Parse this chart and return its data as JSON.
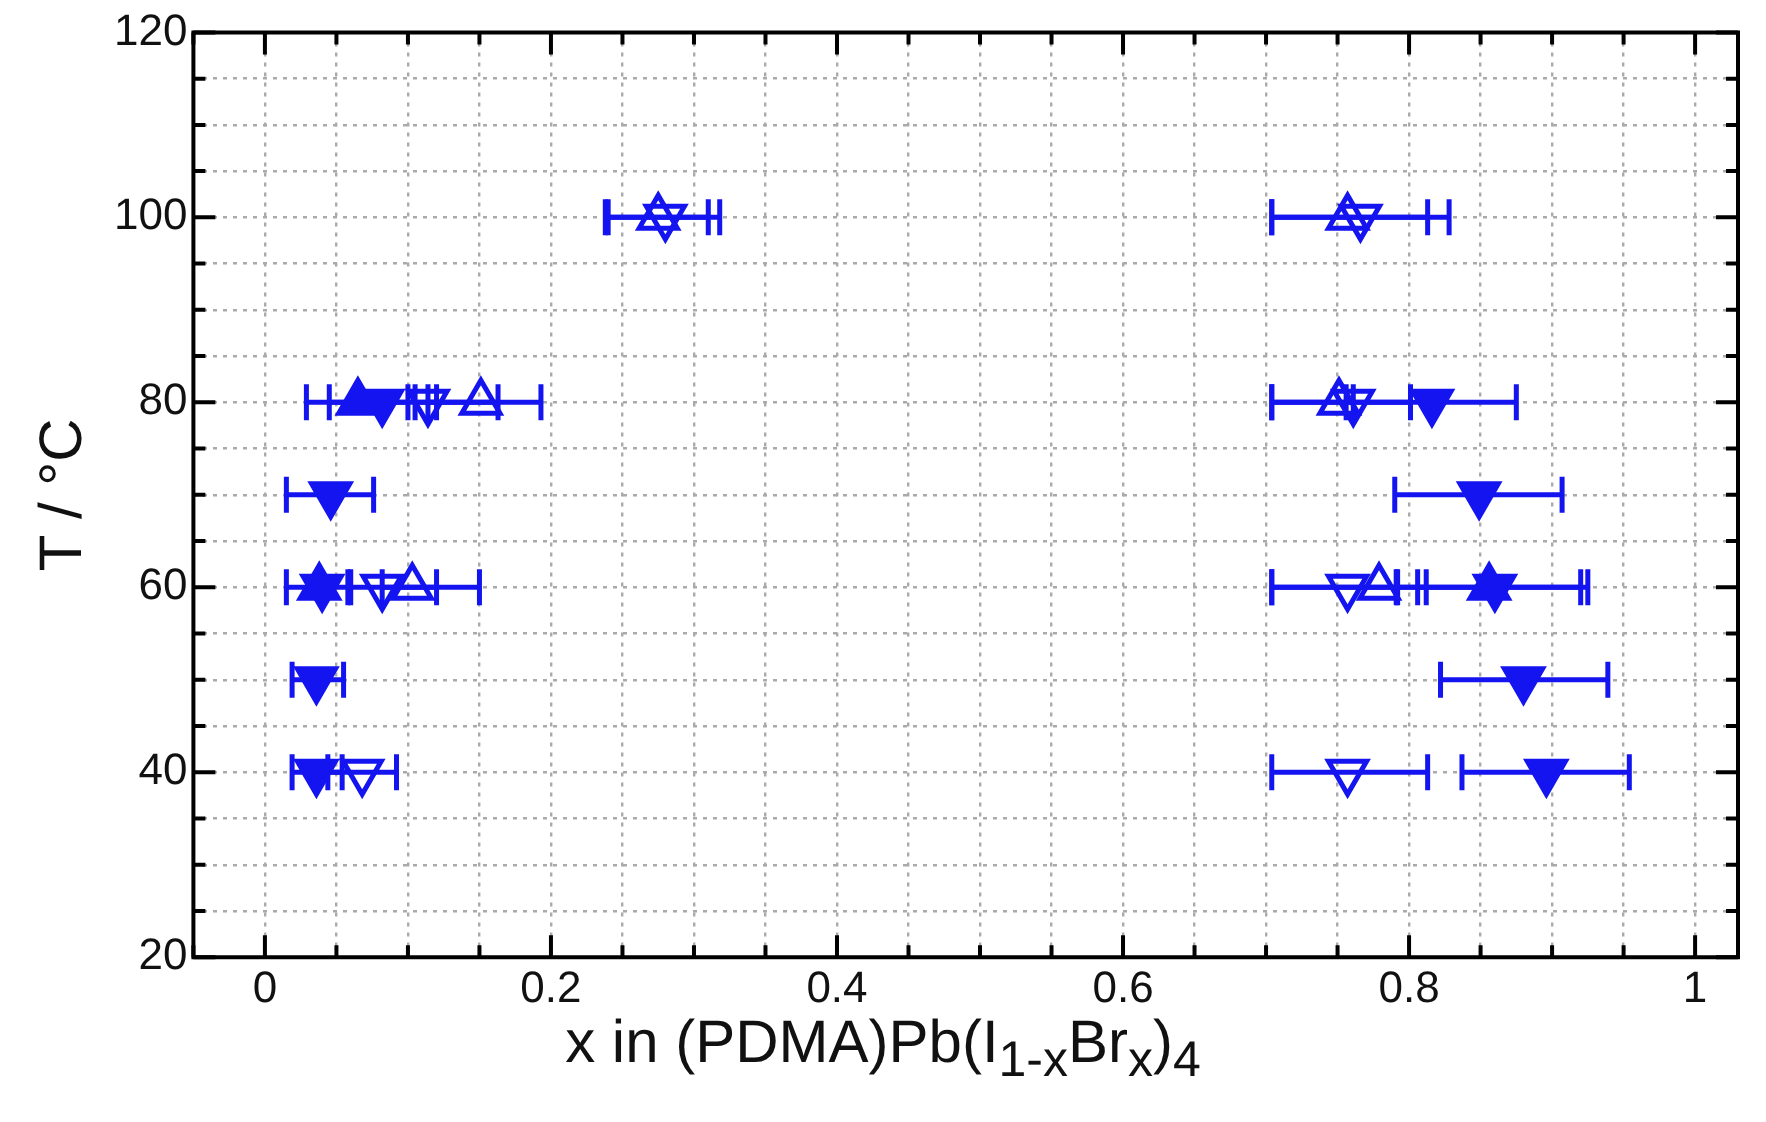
{
  "chart_data": {
    "type": "scatter",
    "xlabel": "x in (PDMA)Pb(I$_{1-x}$Br$_{x}$)$_{4}$",
    "ylabel": "T / °C",
    "xlim": [
      -0.05,
      1.03
    ],
    "ylim": [
      20,
      120
    ],
    "xticks": [
      {
        "value": -0.05,
        "label": null
      },
      0,
      {
        "value": 0.05,
        "label": null
      },
      {
        "value": 0.1,
        "label": null
      },
      {
        "value": 0.15,
        "label": null
      },
      0.2,
      {
        "value": 0.25,
        "label": null
      },
      {
        "value": 0.3,
        "label": null
      },
      {
        "value": 0.35,
        "label": null
      },
      0.4,
      {
        "value": 0.45,
        "label": null
      },
      {
        "value": 0.5,
        "label": null
      },
      {
        "value": 0.55,
        "label": null
      },
      0.6,
      {
        "value": 0.65,
        "label": null
      },
      {
        "value": 0.7,
        "label": null
      },
      {
        "value": 0.75,
        "label": null
      },
      0.8,
      {
        "value": 0.85,
        "label": null
      },
      {
        "value": 0.9,
        "label": null
      },
      {
        "value": 0.95,
        "label": null
      },
      1
    ],
    "yticks": [
      20,
      {
        "value": 25,
        "label": null
      },
      {
        "value": 30,
        "label": null
      },
      {
        "value": 35,
        "label": null
      },
      40,
      {
        "value": 45,
        "label": null
      },
      {
        "value": 50,
        "label": null
      },
      {
        "value": 55,
        "label": null
      },
      60,
      {
        "value": 65,
        "label": null
      },
      {
        "value": 70,
        "label": null
      },
      {
        "value": 75,
        "label": null
      },
      80,
      {
        "value": 85,
        "label": null
      },
      {
        "value": 90,
        "label": null
      },
      {
        "value": 95,
        "label": null
      },
      100,
      {
        "value": 105,
        "label": null
      },
      {
        "value": 110,
        "label": null
      },
      {
        "value": 115,
        "label": null
      },
      120
    ],
    "grid": true,
    "legend": false,
    "series": [
      {
        "color": "#1414f0",
        "marker": "triangle-up-open",
        "x": [
          0.275,
          0.757,
          0.151,
          0.751,
          0.103,
          0.779
        ],
        "values": [
          100,
          100,
          80,
          80,
          60,
          60
        ],
        "xerrors": [
          [
            0.238,
            0.31
          ],
          [
            0.704,
            0.813
          ],
          [
            0.105,
            0.193
          ],
          [
            0.704,
            0.801
          ],
          [
            0.058,
            0.15
          ],
          [
            0.704,
            0.792
          ]
        ]
      },
      {
        "color": "#1414f0",
        "marker": "triangle-down-open",
        "x": [
          0.28,
          0.766,
          0.114,
          0.761,
          0.082,
          0.757,
          0.068,
          0.757
        ],
        "values": [
          100,
          100,
          80,
          80,
          60,
          60,
          40,
          40
        ],
        "xerrors": [
          [
            0.24,
            0.318
          ],
          [
            0.704,
            0.828
          ],
          [
            0.114,
            0.163
          ],
          [
            0.704,
            0.761
          ],
          [
            0.082,
            0.12
          ],
          [
            0.704,
            0.812
          ],
          [
            0.044,
            0.092
          ],
          [
            0.704,
            0.813
          ]
        ]
      },
      {
        "color": "#1414f0",
        "marker": "triangle-up",
        "x": [
          0.065,
          0.038,
          0.856
        ],
        "values": [
          80,
          60,
          60
        ],
        "xerrors": [
          [
            0.029,
            0.1
          ],
          [
            0.015,
            0.06
          ],
          [
            0.791,
            0.92
          ]
        ]
      },
      {
        "color": "#1414f0",
        "marker": "triangle-down",
        "x": [
          0.082,
          0.816,
          0.046,
          0.849,
          0.04,
          0.86,
          0.036,
          0.88,
          0.036,
          0.896
        ],
        "values": [
          80,
          80,
          70,
          70,
          60,
          60,
          50,
          50,
          40,
          40
        ],
        "xerrors": [
          [
            0.045,
            0.12
          ],
          [
            0.756,
            0.875
          ],
          [
            0.015,
            0.076
          ],
          [
            0.79,
            0.907
          ],
          null,
          [
            0.806,
            0.925
          ],
          [
            0.019,
            0.055
          ],
          [
            0.822,
            0.939
          ],
          [
            0.019,
            0.054
          ],
          [
            0.837,
            0.954
          ]
        ]
      }
    ]
  }
}
